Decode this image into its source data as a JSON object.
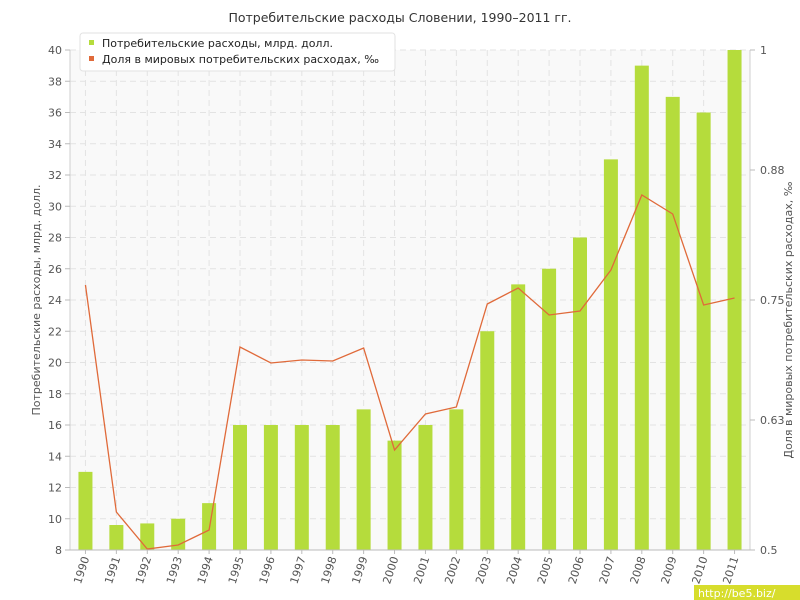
{
  "chart_data": {
    "type": "bar",
    "title": "Потребительские расходы Словении, 1990–2011 гг.",
    "categories": [
      "1990",
      "1991",
      "1992",
      "1993",
      "1994",
      "1995",
      "1996",
      "1997",
      "1998",
      "1999",
      "2000",
      "2001",
      "2002",
      "2003",
      "2004",
      "2005",
      "2006",
      "2007",
      "2008",
      "2009",
      "2010",
      "2011"
    ],
    "series": [
      {
        "name": "Потребительские расходы, млрд. долл.",
        "type": "bar",
        "axis": "left",
        "color": "#b5dc3c",
        "values": [
          13,
          9.6,
          9.7,
          10,
          11,
          16,
          16,
          16,
          16,
          17,
          15,
          16,
          17,
          22,
          25,
          26,
          28,
          33,
          39,
          37,
          36,
          40
        ]
      },
      {
        "name": "Доля в мировых потребительских расходах, ‰",
        "type": "line",
        "axis": "right",
        "color": "#e06a3a",
        "values": [
          0.765,
          0.538,
          0.501,
          0.505,
          0.52,
          0.703,
          0.687,
          0.69,
          0.689,
          0.702,
          0.6,
          0.636,
          0.643,
          0.746,
          0.762,
          0.735,
          0.739,
          0.78,
          0.855,
          0.836,
          0.745,
          0.752
        ]
      }
    ],
    "ylabel": "Потребительские расходы, млрд. долл.",
    "y2label": "Доля в мировых потребительских расходах, ‰",
    "ylim": [
      8,
      40
    ],
    "y2lim": [
      0.5,
      1
    ],
    "yticks": [
      "8",
      "10",
      "12",
      "14",
      "16",
      "18",
      "20",
      "22",
      "24",
      "26",
      "28",
      "30",
      "32",
      "34",
      "36",
      "38",
      "40"
    ],
    "y2ticks": [
      "0.5",
      "0.63",
      "0.75",
      "0.88",
      "1"
    ],
    "grid": true,
    "legend_position": "top-left",
    "watermark": "http://be5.biz/"
  }
}
